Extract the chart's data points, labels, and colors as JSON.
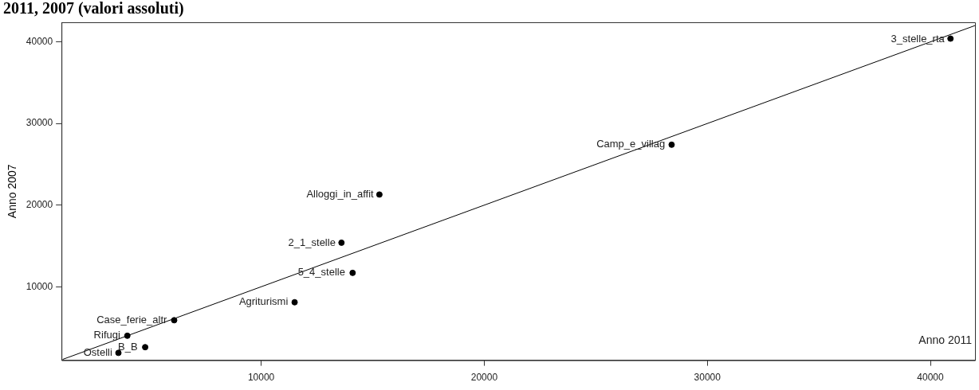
{
  "chart_data": {
    "type": "scatter",
    "title": "2011, 2007 (valori assoluti)",
    "xlabel": "Anno 2011",
    "ylabel": "Anno 2007",
    "xlim": [
      1050,
      42000
    ],
    "ylim": [
      1000,
      42400
    ],
    "xticks": [
      10000,
      20000,
      30000,
      40000
    ],
    "yticks": [
      10000,
      20000,
      30000,
      40000
    ],
    "grid": false,
    "marker": "circle",
    "series": [
      {
        "type": "scatter",
        "color": "#000000",
        "x": [
          40900,
          28400,
          15300,
          13600,
          14100,
          11500,
          6100,
          4000,
          4800,
          3600
        ],
        "values": [
          40400,
          27400,
          21300,
          15400,
          11700,
          8100,
          5900,
          4000,
          2600,
          1900
        ]
      },
      {
        "type": "line",
        "color": "#000000",
        "line_style": "solid",
        "marker": "none",
        "x": [
          1100,
          42000
        ],
        "values": [
          1100,
          42000
        ]
      }
    ],
    "annotations": [
      {
        "text": "3_stelle_rta",
        "x": 40920,
        "y": 40350
      },
      {
        "text": "Camp_e_villag",
        "x": 28390,
        "y": 27400
      },
      {
        "text": "Alloggi_in_affit",
        "x": 15330,
        "y": 21250
      },
      {
        "text": "2_1_stelle",
        "x": 13620,
        "y": 15380
      },
      {
        "text": "5_4_stelle",
        "x": 14050,
        "y": 11740
      },
      {
        "text": "Agriturismi",
        "x": 11490,
        "y": 8110
      },
      {
        "text": "Case_ferie_altr",
        "x": 6060,
        "y": 5870
      },
      {
        "text": "Rifugi",
        "x": 3970,
        "y": 4010
      },
      {
        "text": "B_B",
        "x": 4750,
        "y": 2610
      },
      {
        "text": "Ostelli",
        "x": 3610,
        "y": 1860
      }
    ]
  }
}
